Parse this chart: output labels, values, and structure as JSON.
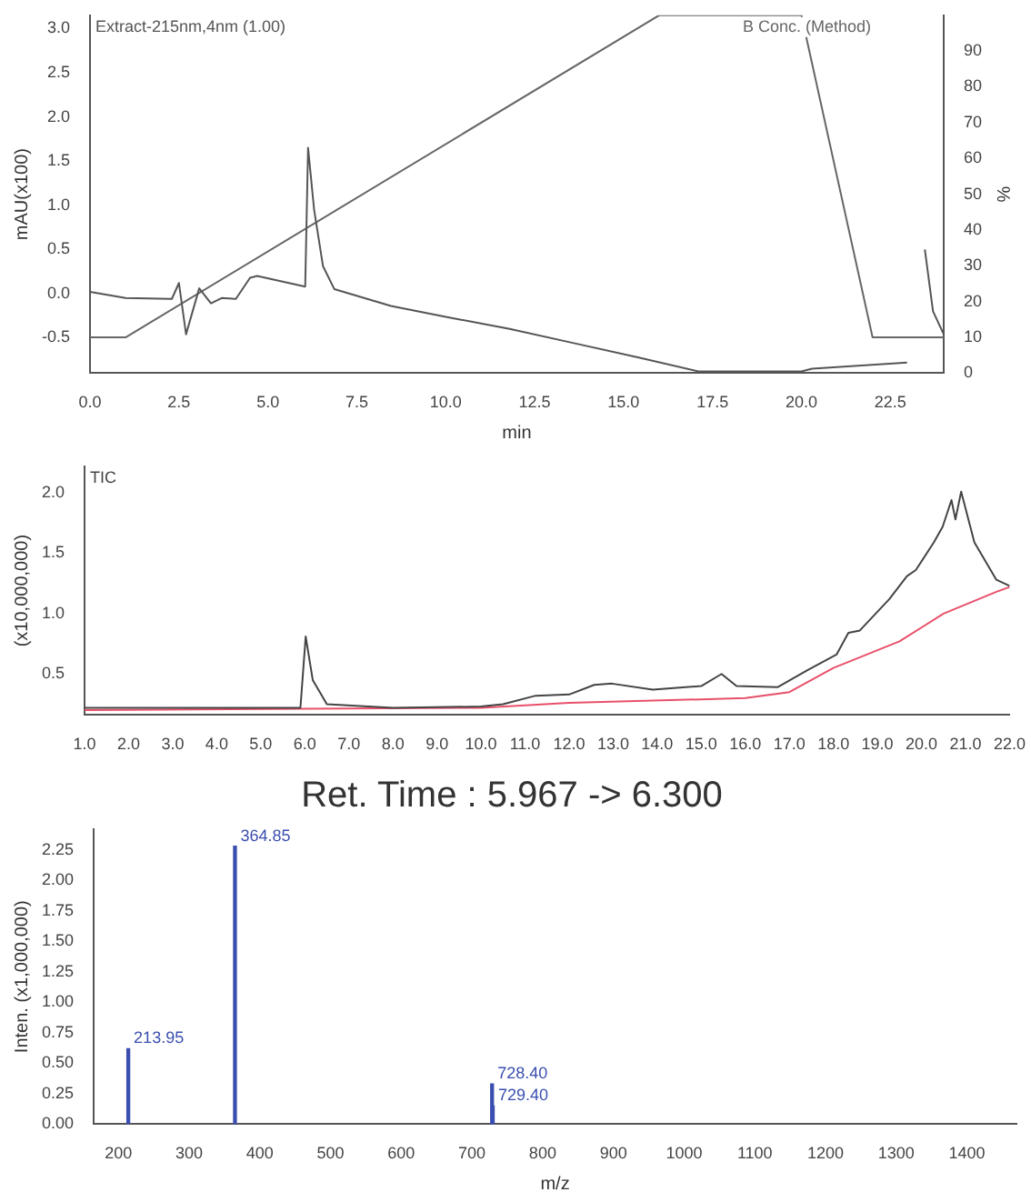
{
  "chart_data": [
    {
      "type": "line",
      "xlabel": "min",
      "ylabel": "mAU(x100)",
      "y2label": "%",
      "xlim": [
        0,
        24.0
      ],
      "ylim": [
        -0.9,
        3.15
      ],
      "y2lim": [
        0,
        100
      ],
      "xticks": [
        {
          "value": 0,
          "label": "0.0"
        },
        {
          "value": 2.5,
          "label": "2.5"
        },
        {
          "value": 5,
          "label": "5.0"
        },
        {
          "value": 7.5,
          "label": "7.5"
        },
        {
          "value": 10,
          "label": "10.0"
        },
        {
          "value": 12.5,
          "label": "12.5"
        },
        {
          "value": 15,
          "label": "15.0"
        },
        {
          "value": 17.5,
          "label": "17.5"
        },
        {
          "value": 20,
          "label": "20.0"
        },
        {
          "value": 22.5,
          "label": "22.5"
        }
      ],
      "yticks": [
        {
          "value": -0.5,
          "label": "-0.5"
        },
        {
          "value": 0,
          "label": "0.0"
        },
        {
          "value": 0.5,
          "label": "0.5"
        },
        {
          "value": 1,
          "label": "1.0"
        },
        {
          "value": 1.5,
          "label": "1.5"
        },
        {
          "value": 2,
          "label": "2.0"
        },
        {
          "value": 2.5,
          "label": "2.5"
        },
        {
          "value": 3,
          "label": "3.0"
        }
      ],
      "y2ticks": [
        0,
        10,
        20,
        30,
        40,
        50,
        60,
        70,
        80,
        90
      ],
      "grid": false,
      "series": [
        {
          "name": "Extract-215nm,4nm (1.00)",
          "color": "#555555",
          "x": [
            0,
            1.0,
            2.3,
            2.5,
            2.7,
            3.07,
            3.4,
            3.7,
            4.1,
            4.5,
            4.7,
            6.05,
            6.13,
            6.3,
            6.55,
            6.87,
            8.46,
            10.1,
            11.8,
            13.6,
            15.4,
            17.1,
            20.0,
            20.3,
            22.97,
            23.05,
            23.3,
            23.47,
            23.7,
            24.0
          ],
          "values": [
            0.02,
            -0.05,
            -0.06,
            0.12,
            -0.46,
            0.06,
            -0.11,
            -0.05,
            -0.06,
            0.18,
            0.2,
            0.08,
            1.65,
            0.95,
            0.31,
            0.05,
            -0.14,
            -0.27,
            -0.4,
            -0.56,
            -0.72,
            -0.88,
            -0.88,
            -0.85,
            -0.78,
            null,
            null,
            0.5,
            -0.2,
            -0.46
          ]
        },
        {
          "name": "B Conc. (Method)",
          "color": "#666666",
          "axis": "y2",
          "x": [
            0,
            1.0,
            16.0,
            20.0,
            22.0,
            24.0
          ],
          "values": [
            10,
            10,
            100,
            100,
            10,
            10
          ]
        }
      ]
    },
    {
      "type": "line",
      "ylabel": "(x10,000,000)",
      "xlim": [
        1.0,
        22.0
      ],
      "ylim": [
        0.16,
        2.22
      ],
      "grid": false,
      "xticks": [
        {
          "value": 1,
          "label": "1.0"
        },
        {
          "value": 2,
          "label": "2.0"
        },
        {
          "value": 3,
          "label": "3.0"
        },
        {
          "value": 4,
          "label": "4.0"
        },
        {
          "value": 5,
          "label": "5.0"
        },
        {
          "value": 6,
          "label": "6.0"
        },
        {
          "value": 7,
          "label": "7.0"
        },
        {
          "value": 8,
          "label": "8.0"
        },
        {
          "value": 9,
          "label": "9.0"
        },
        {
          "value": 10,
          "label": "10.0"
        },
        {
          "value": 11,
          "label": "11.0"
        },
        {
          "value": 12,
          "label": "12.0"
        },
        {
          "value": 13,
          "label": "13.0"
        },
        {
          "value": 14,
          "label": "14.0"
        },
        {
          "value": 15,
          "label": "15.0"
        },
        {
          "value": 16,
          "label": "16.0"
        },
        {
          "value": 17,
          "label": "17.0"
        },
        {
          "value": 18,
          "label": "18.0"
        },
        {
          "value": 19,
          "label": "19.0"
        },
        {
          "value": 20,
          "label": "20.0"
        },
        {
          "value": 21,
          "label": "21.0"
        },
        {
          "value": 22,
          "label": "22.0"
        }
      ],
      "yticks": [
        0.5,
        {
          "value": 1,
          "label": "1.0"
        },
        1.5,
        {
          "value": 2,
          "label": "2.0"
        }
      ],
      "series": [
        {
          "name": "TIC",
          "color": "#444444",
          "x": [
            1.0,
            3.0,
            5.0,
            5.9,
            6.02,
            6.18,
            6.5,
            8.0,
            10.0,
            10.5,
            11.24,
            12.0,
            12.57,
            12.97,
            13.9,
            15.0,
            15.46,
            15.8,
            16.73,
            17.4,
            18.07,
            18.34,
            18.6,
            19.27,
            19.67,
            19.87,
            20.28,
            20.48,
            20.68,
            20.77,
            20.9,
            21.2,
            21.7,
            22.0
          ],
          "values": [
            0.22,
            0.22,
            0.22,
            0.22,
            0.81,
            0.45,
            0.25,
            0.22,
            0.23,
            0.25,
            0.32,
            0.33,
            0.41,
            0.42,
            0.37,
            0.4,
            0.5,
            0.4,
            0.39,
            0.53,
            0.66,
            0.84,
            0.86,
            1.12,
            1.31,
            1.36,
            1.59,
            1.72,
            1.94,
            1.78,
            2.01,
            1.59,
            1.28,
            1.23
          ]
        },
        {
          "color": "#e8506a",
          "x": [
            1.0,
            10.0,
            12.0,
            16.0,
            17.0,
            18.0,
            19.5,
            20.5,
            21.7,
            22.0
          ],
          "values": [
            0.2,
            0.22,
            0.26,
            0.3,
            0.35,
            0.55,
            0.77,
            1.0,
            1.18,
            1.22
          ]
        }
      ]
    },
    {
      "type": "bar",
      "title": "Ret. Time : 5.967 -> 6.300",
      "xlabel": "m/z",
      "ylabel": "Inten. (x1,000,000)",
      "xlim": [
        165,
        1470
      ],
      "ylim": [
        0,
        2.42
      ],
      "grid": false,
      "xticks": [
        200,
        300,
        400,
        500,
        600,
        700,
        800,
        900,
        1000,
        1100,
        1200,
        1300,
        1400
      ],
      "yticks": [
        {
          "value": 0,
          "label": "0.00"
        },
        {
          "value": 0.25,
          "label": "0.25"
        },
        {
          "value": 0.5,
          "label": "0.50"
        },
        {
          "value": 0.75,
          "label": "0.75"
        },
        {
          "value": 1,
          "label": "1.00"
        },
        {
          "value": 1.25,
          "label": "1.25"
        },
        {
          "value": 1.5,
          "label": "1.50"
        },
        {
          "value": 1.75,
          "label": "1.75"
        },
        {
          "value": 2,
          "label": "2.00"
        },
        {
          "value": 2.25,
          "label": "2.25"
        }
      ],
      "annotations": [
        {
          "text": "213.95",
          "x": 213.95,
          "y": 0.62
        },
        {
          "text": "364.85",
          "x": 364.85,
          "y": 2.28
        },
        {
          "text": "728.40",
          "x": 728.4,
          "y": 0.33
        },
        {
          "text": "729.40",
          "x": 729.4,
          "y": 0.15
        }
      ],
      "series": [
        {
          "color": "#3b4fb0",
          "x": [
            213.95,
            364.85,
            728.4,
            729.4
          ],
          "values": [
            0.62,
            2.28,
            0.33,
            0.15
          ]
        }
      ]
    }
  ]
}
